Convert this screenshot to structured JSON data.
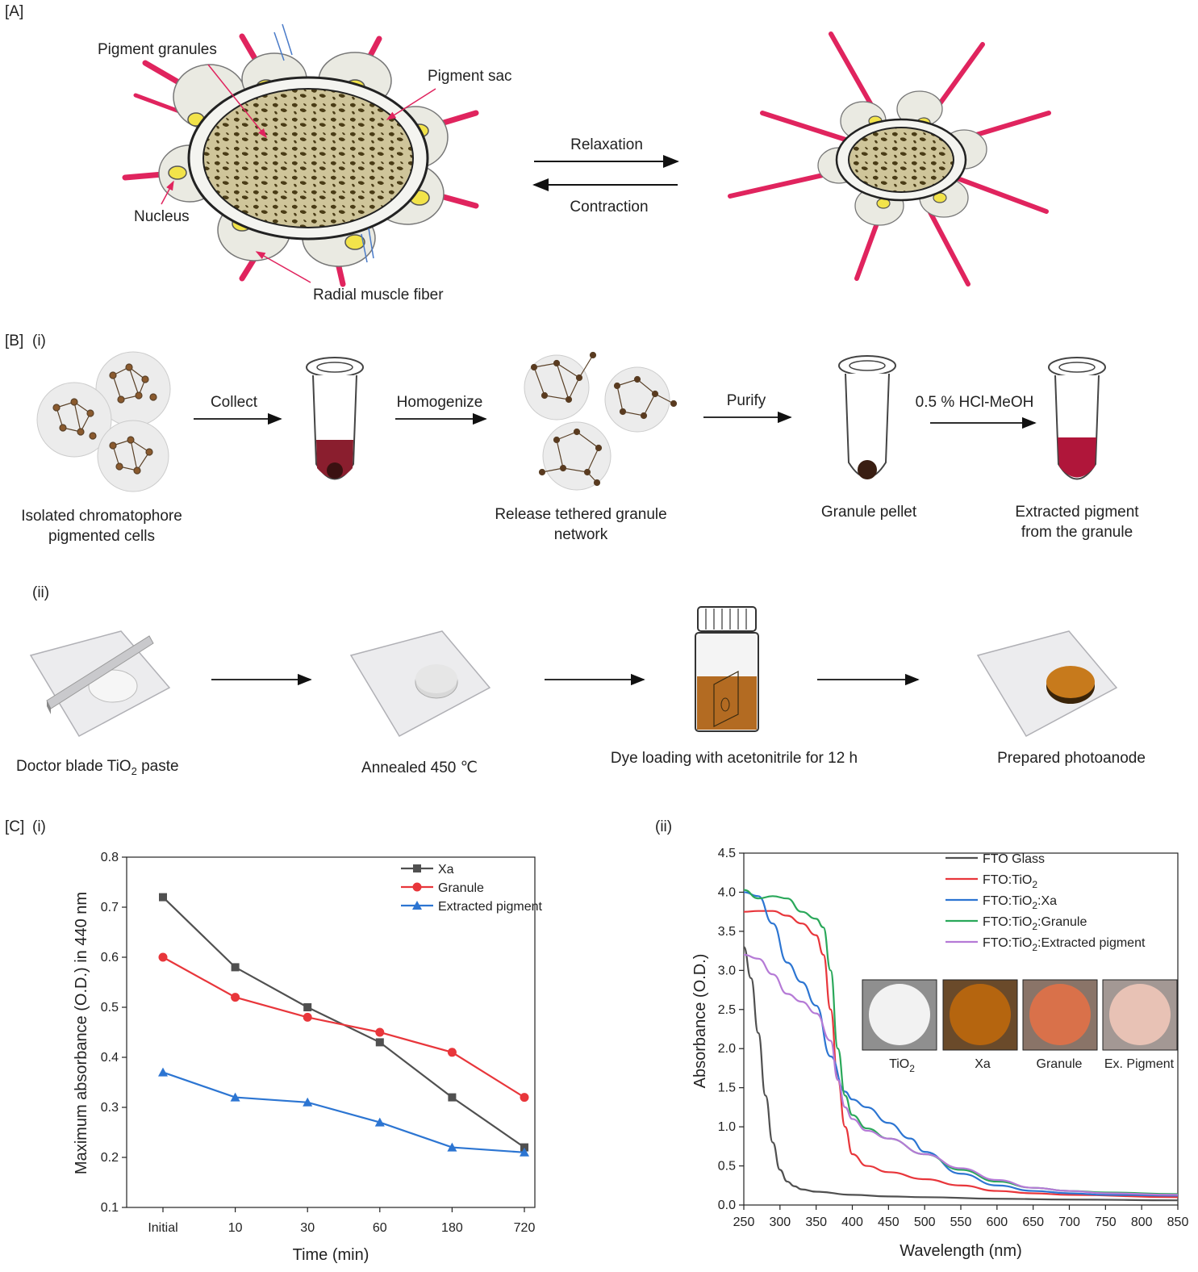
{
  "panels": {
    "A": {
      "label": "[A]",
      "callouts": {
        "pigment_granules": "Pigment granules",
        "pigment_sac": "Pigment sac",
        "nucleus": "Nucleus",
        "radial_muscle_fiber": "Radial muscle fiber"
      },
      "arrows": {
        "relaxation": "Relaxation",
        "contraction": "Contraction"
      }
    },
    "B": {
      "label": "[B]",
      "sub_i": "(i)",
      "sub_ii": "(ii)",
      "steps_i": {
        "collect": "Collect",
        "homogenize": "Homogenize",
        "purify": "Purify",
        "hcl": "0.5 % HCl-MeOH"
      },
      "captions_i": {
        "cells_1": "Isolated chromatophore",
        "cells_2": "pigmented cells",
        "release_1": "Release tethered granule",
        "release_2": "network",
        "pellet": "Granule pellet",
        "extracted_1": "Extracted pigment",
        "extracted_2": "from the granule"
      },
      "captions_ii": {
        "doctor_pre": "Doctor blade TiO",
        "doctor_sub": "2",
        "doctor_post": " paste",
        "annealed": "Annealed 450 ℃",
        "dye": "Dye loading with acetonitrile for 12 h",
        "photoanode": "Prepared photoanode"
      }
    },
    "C": {
      "label": "[C]",
      "sub_i": "(i)",
      "sub_ii": "(ii)"
    }
  },
  "colors": {
    "muscle": "#e0245e",
    "nucleus": "#f2e34a",
    "granule_fill": "#6b5a2a",
    "dark_line": "#505050",
    "red_line": "#e8363b",
    "blue_line": "#2c75d2",
    "green_line": "#2aa85a",
    "purple_line": "#b57ad6",
    "tio2_disk": "#f2f2f2",
    "xa_disk": "#b5650f",
    "granule_disk": "#d9714a",
    "expig_disk": "#e8c2b5"
  },
  "chart_data": [
    {
      "type": "line",
      "xlabel": "Time (min)",
      "ylabel": "Maximum absorbance (O.D.) in 440 nm",
      "categories": [
        "Initial",
        "10",
        "30",
        "60",
        "180",
        "720"
      ],
      "ylim": [
        0.1,
        0.8
      ],
      "yticks": [
        "0.1",
        "0.2",
        "0.3",
        "0.4",
        "0.5",
        "0.6",
        "0.7",
        "0.8"
      ],
      "legend_position": "top-right",
      "series": [
        {
          "name": "Xa",
          "marker": "square",
          "color": "#505050",
          "values": [
            0.72,
            0.58,
            0.5,
            0.43,
            0.32,
            0.22
          ]
        },
        {
          "name": "Granule",
          "marker": "circle",
          "color": "#e8363b",
          "values": [
            0.6,
            0.52,
            0.48,
            0.45,
            0.41,
            0.32
          ]
        },
        {
          "name": "Extracted pigment",
          "marker": "triangle",
          "color": "#2c75d2",
          "values": [
            0.37,
            0.32,
            0.31,
            0.27,
            0.22,
            0.21
          ]
        }
      ]
    },
    {
      "type": "line",
      "xlabel": "Wavelength (nm)",
      "ylabel": "Absorbance (O.D.)",
      "xlim": [
        250,
        850
      ],
      "ylim": [
        0.0,
        4.5
      ],
      "xticks": [
        "250",
        "300",
        "350",
        "400",
        "450",
        "500",
        "550",
        "600",
        "650",
        "700",
        "750",
        "800",
        "850"
      ],
      "yticks": [
        "0.0",
        "0.5",
        "1.0",
        "1.5",
        "2.0",
        "2.5",
        "3.0",
        "3.5",
        "4.0",
        "4.5"
      ],
      "legend_position": "top-right",
      "series": [
        {
          "name_pre": "FTO Glass",
          "name_sub": "",
          "name_post": "",
          "color": "#505050",
          "x": [
            250,
            260,
            270,
            280,
            290,
            300,
            310,
            320,
            330,
            350,
            400,
            450,
            500,
            600,
            700,
            850
          ],
          "y": [
            3.3,
            2.9,
            2.2,
            1.4,
            0.8,
            0.45,
            0.3,
            0.24,
            0.2,
            0.17,
            0.13,
            0.11,
            0.1,
            0.08,
            0.07,
            0.06
          ]
        },
        {
          "name_pre": "FTO:TiO",
          "name_sub": "2",
          "name_post": "",
          "color": "#e8363b",
          "x": [
            250,
            270,
            290,
            310,
            330,
            350,
            360,
            370,
            380,
            390,
            400,
            420,
            450,
            500,
            550,
            600,
            650,
            700,
            850
          ],
          "y": [
            3.75,
            3.76,
            3.76,
            3.7,
            3.6,
            3.45,
            3.2,
            2.5,
            1.6,
            1.0,
            0.65,
            0.5,
            0.42,
            0.33,
            0.25,
            0.18,
            0.15,
            0.13,
            0.1
          ]
        },
        {
          "name_pre": "FTO:TiO",
          "name_sub": "2",
          "name_post": ":Xa",
          "color": "#2c75d2",
          "x": [
            250,
            270,
            290,
            310,
            330,
            350,
            370,
            390,
            400,
            420,
            450,
            480,
            500,
            550,
            600,
            650,
            700,
            750,
            850
          ],
          "y": [
            4.0,
            3.95,
            3.6,
            3.1,
            2.85,
            2.55,
            1.9,
            1.45,
            1.35,
            1.25,
            1.05,
            0.85,
            0.68,
            0.4,
            0.25,
            0.18,
            0.15,
            0.13,
            0.12
          ]
        },
        {
          "name_pre": "FTO:TiO",
          "name_sub": "2",
          "name_post": ":Granule",
          "color": "#2aa85a",
          "x": [
            250,
            270,
            290,
            310,
            330,
            350,
            360,
            370,
            380,
            390,
            400,
            420,
            450,
            500,
            550,
            600,
            650,
            700,
            750,
            850
          ],
          "y": [
            4.03,
            3.92,
            3.95,
            3.92,
            3.75,
            3.66,
            3.55,
            3.0,
            2.0,
            1.4,
            1.15,
            0.98,
            0.85,
            0.65,
            0.45,
            0.3,
            0.22,
            0.18,
            0.16,
            0.14
          ]
        },
        {
          "name_pre": "FTO:TiO",
          "name_sub": "2",
          "name_post": ":Extracted pigment",
          "color": "#b57ad6",
          "x": [
            250,
            270,
            290,
            310,
            330,
            350,
            370,
            380,
            390,
            400,
            420,
            450,
            500,
            550,
            600,
            650,
            700,
            750,
            850
          ],
          "y": [
            3.2,
            3.15,
            2.95,
            2.7,
            2.6,
            2.45,
            2.1,
            1.6,
            1.25,
            1.1,
            0.95,
            0.85,
            0.65,
            0.47,
            0.32,
            0.22,
            0.18,
            0.15,
            0.13
          ]
        }
      ],
      "inset_labels": {
        "tio2_pre": "TiO",
        "tio2_sub": "2",
        "xa": "Xa",
        "granule": "Granule",
        "expig": "Ex. Pigment"
      }
    }
  ]
}
